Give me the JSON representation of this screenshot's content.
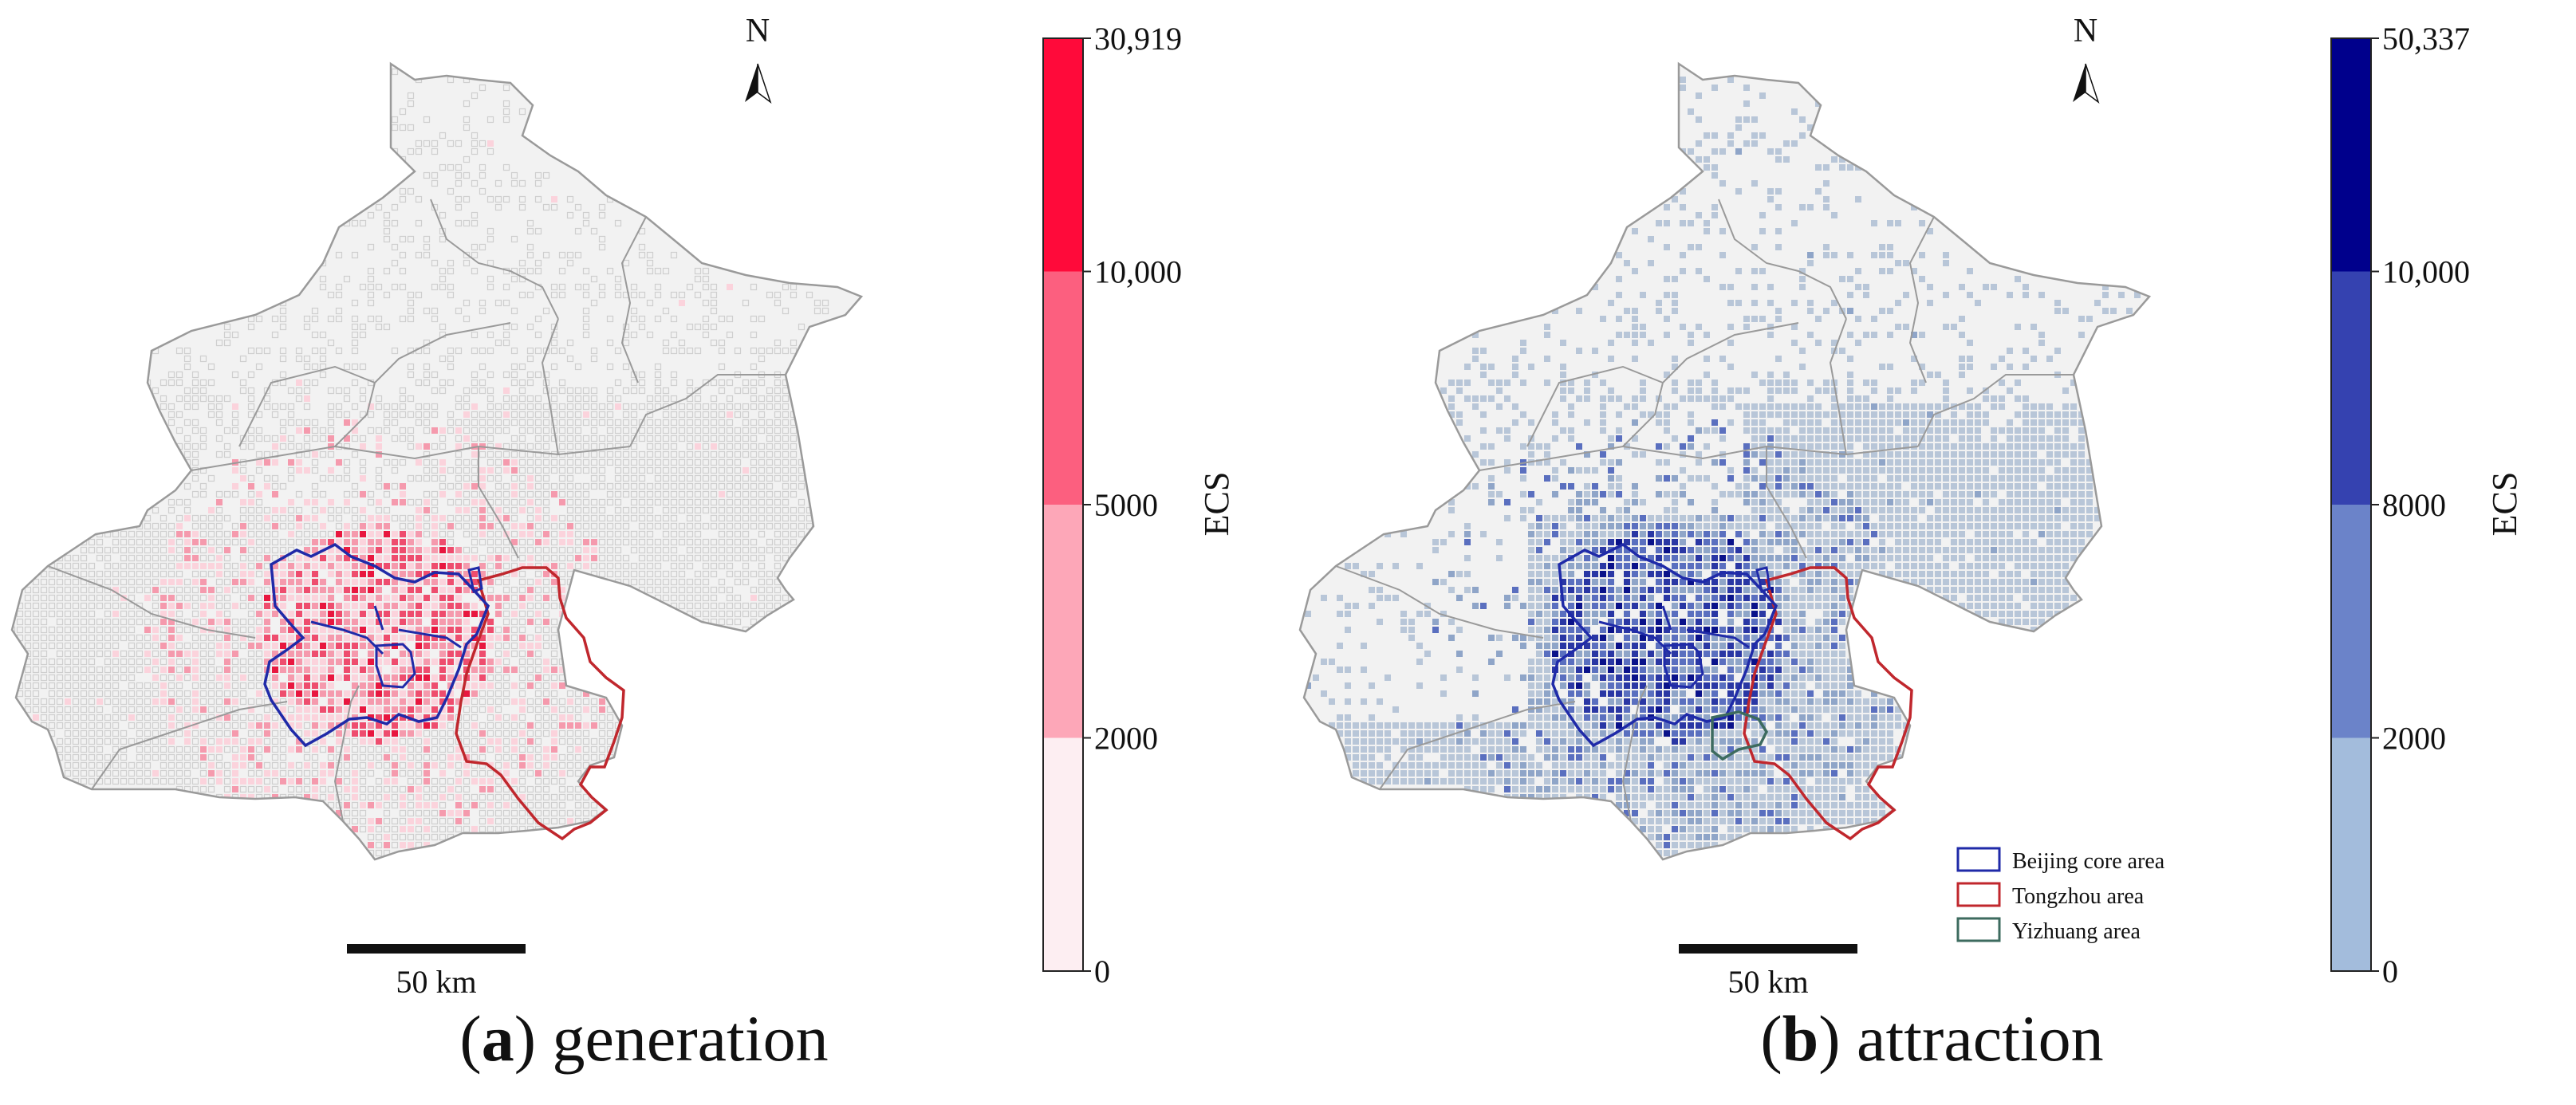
{
  "panels": [
    {
      "id": "a",
      "caption_letter": "a",
      "caption_text": "generation",
      "north_label": "N",
      "scale_label": "50 km",
      "colorbar": {
        "label": "ECS",
        "ticks": [
          "0",
          "2000",
          "5000",
          "10,000",
          "30,919"
        ],
        "colors": [
          "#fdeef2",
          "#fda7b8",
          "#fc5f7f",
          "#ff0a3a"
        ]
      },
      "palette": {
        "base": "#e0e0e0",
        "light": "#fbd3dc",
        "mid": "#f59aad",
        "high": "#ee4d6e",
        "max": "#e8173f"
      }
    },
    {
      "id": "b",
      "caption_letter": "b",
      "caption_text": "attraction",
      "north_label": "N",
      "scale_label": "50 km",
      "colorbar": {
        "label": "ECS",
        "ticks": [
          "0",
          "2000",
          "8000",
          "10,000",
          "50,337"
        ],
        "colors": [
          "#a3bcdc",
          "#6b83c9",
          "#3542b0",
          "#00008c"
        ]
      },
      "palette": {
        "base": "#b8c6d8",
        "light": "#8fa5c8",
        "mid": "#5a6fbf",
        "high": "#2a37a4",
        "max": "#0a128a"
      },
      "legend": [
        {
          "label": "Beijing core area",
          "color": "#1f2aa8"
        },
        {
          "label": "Tongzhou area",
          "color": "#c0272d"
        },
        {
          "label": "Yizhuang area",
          "color": "#3d6b5f"
        }
      ]
    }
  ],
  "colors": {
    "boundary": "#9a9a9a",
    "land": "#f2f2f2",
    "core_area": "#1f2aa8",
    "tongzhou_area": "#c0272d",
    "yizhuang_area": "#3d6b5f"
  }
}
